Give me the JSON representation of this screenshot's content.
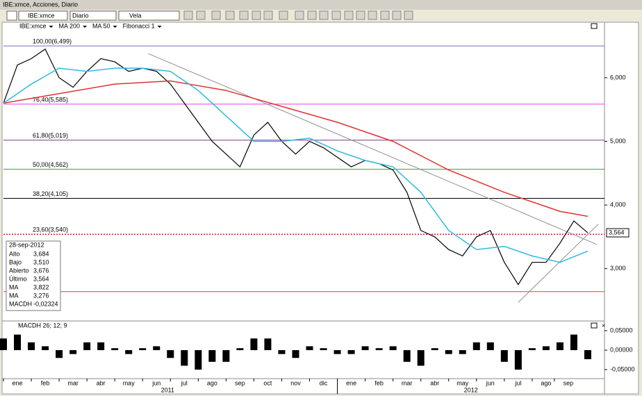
{
  "window": {
    "title": "IBE:xmce, Acciones, Diario"
  },
  "toolbar": {
    "symbol": "IBE:xmce",
    "period": "Diario",
    "style": "Vela"
  },
  "info_box": {
    "date": "28-sep-2012",
    "rows": [
      [
        "Alto",
        "3,684"
      ],
      [
        "Bajo",
        "3,510"
      ],
      [
        "Abierto",
        "3,676"
      ],
      [
        "Último",
        "3,564"
      ],
      [
        "MA",
        "3,822"
      ],
      [
        "MA",
        "3,276"
      ],
      [
        "MACDH",
        "-0,02324"
      ]
    ]
  },
  "chart_data": [
    {
      "type": "line",
      "legend_extra": "Fibonacci 1",
      "xlim": [
        0,
        21.6
      ],
      "ylim": [
        2.2,
        6.73
      ],
      "yticks": [
        {
          "value": 3,
          "label": "3,000"
        },
        {
          "value": 4,
          "label": "4,000"
        },
        {
          "value": 5,
          "label": "5,000"
        },
        {
          "value": 6,
          "label": "6,000"
        }
      ],
      "xticks": [
        {
          "value": 0.5,
          "label": "ene"
        },
        {
          "value": 1.5,
          "label": "feb"
        },
        {
          "value": 2.5,
          "label": "mar"
        },
        {
          "value": 3.5,
          "label": "abr"
        },
        {
          "value": 4.5,
          "label": "may"
        },
        {
          "value": 5.5,
          "label": "jun"
        },
        {
          "value": 6.5,
          "label": "jul"
        },
        {
          "value": 7.5,
          "label": "ago"
        },
        {
          "value": 8.5,
          "label": "sep"
        },
        {
          "value": 9.5,
          "label": "oct"
        },
        {
          "value": 10.5,
          "label": "nov"
        },
        {
          "value": 11.5,
          "label": "dic"
        },
        {
          "value": 12.5,
          "label": "ene"
        },
        {
          "value": 13.5,
          "label": "feb"
        },
        {
          "value": 14.5,
          "label": "mar"
        },
        {
          "value": 15.5,
          "label": "abr"
        },
        {
          "value": 16.5,
          "label": "may"
        },
        {
          "value": 17.5,
          "label": "jun"
        },
        {
          "value": 18.5,
          "label": "jul"
        },
        {
          "value": 19.5,
          "label": "ago"
        },
        {
          "value": 20.3,
          "label": "sep"
        }
      ],
      "year_labels": [
        {
          "value": 5.9,
          "label": "2011"
        },
        {
          "value": 16.8,
          "label": "2012"
        }
      ],
      "year_divider": 12,
      "last_price": {
        "value": 3.564,
        "label": "3,564"
      },
      "series": [
        {
          "name": "IBE:xmce",
          "color": "#000000",
          "x": [
            0,
            0.5,
            1,
            1.5,
            2,
            2.5,
            3,
            3.5,
            4,
            4.5,
            5,
            5.5,
            6,
            6.5,
            7,
            7.5,
            8,
            8.5,
            9,
            9.5,
            10,
            10.5,
            11,
            11.5,
            12,
            12.5,
            13,
            13.5,
            14,
            14.5,
            15,
            15.5,
            16,
            16.5,
            17,
            17.5,
            18,
            18.5,
            19,
            19.5,
            20,
            20.5,
            21
          ],
          "values": [
            5.6,
            6.2,
            6.3,
            6.45,
            6.0,
            5.85,
            6.1,
            6.3,
            6.25,
            6.1,
            6.15,
            6.1,
            5.9,
            5.6,
            5.3,
            5.0,
            4.8,
            4.6,
            5.1,
            5.3,
            5.0,
            4.8,
            5.0,
            4.9,
            4.75,
            4.6,
            4.7,
            4.65,
            4.55,
            4.2,
            3.6,
            3.5,
            3.3,
            3.2,
            3.5,
            3.6,
            3.1,
            2.75,
            3.1,
            3.1,
            3.4,
            3.75,
            3.564
          ]
        },
        {
          "name": "MA 200",
          "color": "#e03030",
          "x": [
            0,
            2,
            4,
            6,
            8,
            10,
            12,
            14,
            16,
            18,
            20,
            21
          ],
          "values": [
            5.6,
            5.75,
            5.9,
            5.95,
            5.8,
            5.55,
            5.3,
            5.0,
            4.55,
            4.2,
            3.9,
            3.822
          ]
        },
        {
          "name": "MA 50",
          "color": "#30b8e0",
          "x": [
            0,
            1,
            2,
            3,
            4,
            5,
            6,
            7,
            8,
            9,
            10,
            11,
            12,
            13,
            14,
            15,
            16,
            17,
            18,
            19,
            20,
            21
          ],
          "values": [
            5.6,
            5.9,
            6.15,
            6.1,
            6.15,
            6.15,
            6.1,
            5.8,
            5.4,
            5.0,
            5.0,
            5.05,
            4.85,
            4.7,
            4.6,
            4.2,
            3.6,
            3.3,
            3.35,
            3.2,
            3.1,
            3.276
          ]
        }
      ],
      "fib_levels": [
        {
          "value": 6.499,
          "label": "100,00(6,499)",
          "color": "#7070b0"
        },
        {
          "value": 5.585,
          "label": "76,40(5,585)",
          "color": "#e040e0"
        },
        {
          "value": 5.019,
          "label": "61,80(5,019)",
          "color": "#803090"
        },
        {
          "value": 4.562,
          "label": "50,00(4,562)",
          "color": "#30a030"
        },
        {
          "value": 4.105,
          "label": "38,20(4,105)",
          "color": "#000000"
        },
        {
          "value": 3.54,
          "label": "23,60(3,540)",
          "color": "#d02020",
          "dashed": true
        },
        {
          "value": 2.64,
          "color": "#e04040"
        }
      ],
      "trendlines": [
        {
          "x": [
            5.2,
            21.33
          ],
          "y": [
            6.38,
            3.38
          ]
        },
        {
          "x": [
            18.5,
            21.38
          ],
          "y": [
            2.47,
            3.7
          ]
        }
      ]
    },
    {
      "type": "bar",
      "title": "MACDH 26; 12; 9",
      "color": "#000000",
      "ylim": [
        -0.0696,
        0.0696
      ],
      "yticks": [
        {
          "value": 0.05,
          "label": "0,05000"
        },
        {
          "value": 0,
          "label": "0,00000"
        },
        {
          "value": -0.05,
          "label": "-0,05000"
        }
      ],
      "x": [
        0,
        0.5,
        1,
        1.5,
        2,
        2.5,
        3,
        3.5,
        4,
        4.5,
        5,
        5.5,
        6,
        6.5,
        7,
        7.5,
        8,
        8.5,
        9,
        9.5,
        10,
        10.5,
        11,
        11.5,
        12,
        12.5,
        13,
        13.5,
        14,
        14.5,
        15,
        15.5,
        16,
        16.5,
        17,
        17.5,
        18,
        18.5,
        19,
        19.5,
        20,
        20.5,
        21
      ],
      "values": [
        0.03,
        0.04,
        0.02,
        0.01,
        -0.02,
        -0.01,
        0.02,
        0.02,
        0.005,
        -0.01,
        0.005,
        0.01,
        -0.02,
        -0.04,
        -0.05,
        -0.03,
        -0.03,
        0.005,
        0.03,
        0.03,
        -0.01,
        -0.02,
        0.01,
        0.005,
        -0.01,
        -0.01,
        0.01,
        0.005,
        0.01,
        -0.03,
        -0.04,
        0.005,
        -0.01,
        -0.01,
        0.02,
        0.02,
        -0.03,
        -0.05,
        0.005,
        0.01,
        0.02,
        0.04,
        -0.02324
      ]
    }
  ]
}
